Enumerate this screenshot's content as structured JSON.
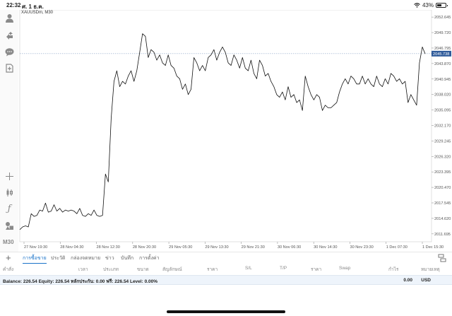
{
  "status": {
    "time": "22:32",
    "date": "ศ. 1 ธ.ค.",
    "battery": "43%",
    "battery_level": 0.43
  },
  "sidebar": {
    "icons": [
      "user-icon",
      "trade-icon",
      "chat-icon",
      "add-document-icon",
      "crosshair-icon",
      "candles-icon",
      "function-icon",
      "shapes-icon"
    ],
    "timeframe": "M30"
  },
  "chart": {
    "symbol": "XAUUSDm, M30",
    "current_price": "2045.738",
    "colors": {
      "line": "#111111",
      "price_tag": "#2f5b9a",
      "grid": "#e9e9e9"
    }
  },
  "chart_data": {
    "type": "line",
    "y_ticks": [
      "2052.645",
      "2049.720",
      "2046.795",
      "2043.870",
      "2040.945",
      "2038.020",
      "2035.095",
      "2032.170",
      "2029.245",
      "2026.320",
      "2023.395",
      "2020.470",
      "2017.545",
      "2014.620",
      "2011.695"
    ],
    "x_ticks": [
      "27 Nov 19:30",
      "28 Nov 04:30",
      "28 Nov 12:30",
      "28 Nov 20:30",
      "29 Nov 05:30",
      "29 Nov 13:30",
      "29 Nov 21:30",
      "30 Nov 06:30",
      "30 Nov 14:30",
      "30 Nov 23:30",
      "1 Dec 07:30",
      "1 Dec 15:30"
    ],
    "ylim": [
      2010.2,
      2054.0
    ],
    "price_line": 2045.738,
    "values": [
      2012.5,
      2013.0,
      2013.2,
      2013.0,
      2015.5,
      2015.0,
      2015.2,
      2016.2,
      2016.0,
      2017.5,
      2015.8,
      2016.0,
      2017.2,
      2016.0,
      2016.5,
      2015.8,
      2016.2,
      2016.0,
      2016.2,
      2016.0,
      2015.5,
      2016.5,
      2015.2,
      2015.0,
      2015.5,
      2015.2,
      2016.2,
      2015.2,
      2015.0,
      2015.2,
      2023.0,
      2021.5,
      2033.5,
      2040.5,
      2042.5,
      2039.5,
      2040.5,
      2040.0,
      2041.5,
      2042.5,
      2040.5,
      2042.5,
      2046.0,
      2049.5,
      2049.0,
      2045.0,
      2046.5,
      2046.0,
      2044.5,
      2045.5,
      2044.0,
      2043.5,
      2045.5,
      2043.5,
      2043.0,
      2041.5,
      2041.0,
      2039.0,
      2040.0,
      2038.0,
      2039.0,
      2045.0,
      2044.0,
      2042.5,
      2043.5,
      2042.5,
      2045.0,
      2045.5,
      2046.5,
      2044.5,
      2046.0,
      2047.0,
      2046.0,
      2044.0,
      2043.5,
      2045.5,
      2044.5,
      2043.0,
      2045.0,
      2043.0,
      2042.5,
      2044.5,
      2042.0,
      2041.0,
      2044.5,
      2043.5,
      2041.5,
      2042.0,
      2040.5,
      2039.5,
      2038.0,
      2037.5,
      2038.5,
      2037.0,
      2039.5,
      2037.5,
      2038.0,
      2036.5,
      2037.0,
      2035.0,
      2041.5,
      2039.5,
      2038.0,
      2037.0,
      2038.0,
      2037.5,
      2035.0,
      2036.0,
      2035.5,
      2035.5,
      2036.0,
      2036.5,
      2038.5,
      2040.0,
      2041.0,
      2040.0,
      2041.5,
      2041.0,
      2040.0,
      2040.0,
      2041.5,
      2040.0,
      2041.0,
      2040.0,
      2039.5,
      2041.5,
      2040.0,
      2039.5,
      2041.0,
      2040.0,
      2042.0,
      2041.5,
      2040.5,
      2041.0,
      2040.0,
      2040.5,
      2036.5,
      2038.0,
      2037.0,
      2036.0,
      2044.0,
      2047.0,
      2045.7
    ]
  },
  "tabs": [
    "การซื้อขาย",
    "ประวัติ",
    "กล่องจดหมาย",
    "ข่าว",
    "บันทึก",
    "การตั้งค่า"
  ],
  "columns": [
    "คำสั่ง",
    "เวลา",
    "ประเภท",
    "ขนาด",
    "สัญลักษณ์",
    "ราคา",
    "S/L",
    "T/P",
    "ราคา",
    "Swap",
    "กำไร",
    "หมายเหตุ"
  ],
  "balance": {
    "text": "Balance: 226.54 Equity: 226.54 หลักประกัน: 0.00 ฟรี: 226.54 Level: 0.00%",
    "profit": "0.00",
    "currency": "USD"
  }
}
